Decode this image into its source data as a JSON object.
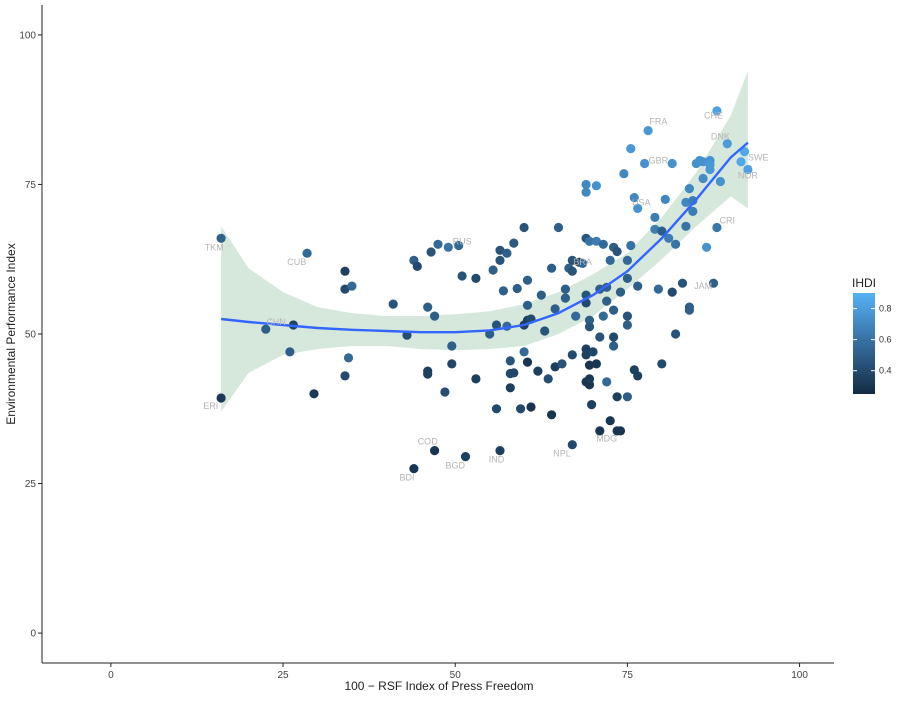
{
  "colors": {
    "ribbon": "#cfe3d6",
    "smooth_line": "#3366ff",
    "label": "#b5b5b5",
    "point_low": "#132b43",
    "point_high": "#56b1f7",
    "axis": "#222222"
  },
  "chart_data": {
    "type": "scatter",
    "xlabel": "100 − RSF Index of Press Freedom",
    "ylabel": "Environmental Performance Index",
    "xlim": [
      -10,
      105
    ],
    "ylim": [
      -5,
      105
    ],
    "x_ticks": [
      0,
      25,
      50,
      75,
      100
    ],
    "y_ticks": [
      0,
      25,
      50,
      75,
      100
    ],
    "grid": false,
    "legend": {
      "title": "IHDI",
      "placement": "right",
      "ticks": [
        0.4,
        0.6,
        0.8
      ],
      "range": [
        0.25,
        0.9
      ]
    },
    "smooth": {
      "x": [
        16,
        20,
        25,
        30,
        35,
        40,
        45,
        50,
        55,
        60,
        65,
        70,
        75,
        80,
        85,
        90,
        92.5
      ],
      "y": [
        52.5,
        52,
        51.5,
        51,
        50.7,
        50.5,
        50.3,
        50.3,
        50.6,
        51.5,
        53.5,
        56.5,
        60.5,
        66,
        72.5,
        79.5,
        82
      ],
      "lower": [
        37,
        43.5,
        46.5,
        47.5,
        48,
        48,
        47.5,
        47.3,
        47.5,
        48,
        50,
        53,
        57.5,
        62.5,
        68,
        73,
        71
      ],
      "upper": [
        68,
        61,
        57,
        54.5,
        53.5,
        53,
        53,
        53.3,
        53.8,
        55,
        57,
        60,
        63.5,
        69.5,
        77,
        86.5,
        94
      ]
    },
    "labels": [
      {
        "text": "TKM",
        "x": 15,
        "y": 64
      },
      {
        "text": "CUB",
        "x": 27,
        "y": 61.5
      },
      {
        "text": "RUS",
        "x": 51,
        "y": 65
      },
      {
        "text": "CHN",
        "x": 24,
        "y": 51.5
      },
      {
        "text": "ERI",
        "x": 14.5,
        "y": 37.5
      },
      {
        "text": "COD",
        "x": 46,
        "y": 31.5
      },
      {
        "text": "BDI",
        "x": 43,
        "y": 25.5
      },
      {
        "text": "BGD",
        "x": 50,
        "y": 27.5
      },
      {
        "text": "IND",
        "x": 56,
        "y": 28.5
      },
      {
        "text": "NPL",
        "x": 65.5,
        "y": 29.5
      },
      {
        "text": "MDG",
        "x": 72,
        "y": 32
      },
      {
        "text": "BRA",
        "x": 68.5,
        "y": 61.5
      },
      {
        "text": "FRA",
        "x": 79.5,
        "y": 85
      },
      {
        "text": "GBR",
        "x": 79.5,
        "y": 78.5
      },
      {
        "text": "USA",
        "x": 77,
        "y": 71.5
      },
      {
        "text": "CHE",
        "x": 87.5,
        "y": 86
      },
      {
        "text": "DNK",
        "x": 88.5,
        "y": 82.5
      },
      {
        "text": "SWE",
        "x": 94,
        "y": 79
      },
      {
        "text": "NOR",
        "x": 92.5,
        "y": 76
      },
      {
        "text": "CRI",
        "x": 89.5,
        "y": 68.5
      },
      {
        "text": "JAM",
        "x": 86,
        "y": 57.5
      }
    ],
    "points": [
      [
        16,
        66,
        0.52
      ],
      [
        16,
        39.3,
        0.32
      ],
      [
        22.5,
        50.8,
        0.5
      ],
      [
        26.5,
        51.5,
        0.37
      ],
      [
        26,
        47,
        0.5
      ],
      [
        28.5,
        63.5,
        0.55
      ],
      [
        29.5,
        40,
        0.32
      ],
      [
        34,
        60.5,
        0.35
      ],
      [
        34,
        57.5,
        0.4
      ],
      [
        35,
        58,
        0.55
      ],
      [
        34,
        43,
        0.4
      ],
      [
        34.5,
        46,
        0.55
      ],
      [
        41,
        55,
        0.45
      ],
      [
        43,
        49.8,
        0.42
      ],
      [
        44,
        62.3,
        0.5
      ],
      [
        44.5,
        61.3,
        0.4
      ],
      [
        44,
        27.5,
        0.3
      ],
      [
        46,
        54.5,
        0.5
      ],
      [
        46,
        43.8,
        0.35
      ],
      [
        46,
        43.3,
        0.35
      ],
      [
        46.5,
        63.7,
        0.45
      ],
      [
        47,
        53,
        0.5
      ],
      [
        47.5,
        65,
        0.55
      ],
      [
        47,
        30.5,
        0.3
      ],
      [
        49,
        64.5,
        0.6
      ],
      [
        48.5,
        40.3,
        0.42
      ],
      [
        49.5,
        45,
        0.38
      ],
      [
        49.5,
        48,
        0.5
      ],
      [
        50.5,
        64.8,
        0.55
      ],
      [
        51,
        59.7,
        0.45
      ],
      [
        51.5,
        29.5,
        0.35
      ],
      [
        53,
        59.3,
        0.4
      ],
      [
        53,
        42.5,
        0.35
      ],
      [
        55,
        50,
        0.5
      ],
      [
        55.5,
        60.7,
        0.5
      ],
      [
        56,
        51.5,
        0.45
      ],
      [
        56,
        37.5,
        0.4
      ],
      [
        56.5,
        62.3,
        0.45
      ],
      [
        56.5,
        30.5,
        0.35
      ],
      [
        56.5,
        64,
        0.45
      ],
      [
        57,
        57.2,
        0.5
      ],
      [
        57.5,
        63.5,
        0.5
      ],
      [
        57.5,
        51.3,
        0.55
      ],
      [
        58,
        43.4,
        0.4
      ],
      [
        58,
        45.5,
        0.45
      ],
      [
        58,
        41,
        0.35
      ],
      [
        58.5,
        43.5,
        0.38
      ],
      [
        58.5,
        65.2,
        0.48
      ],
      [
        59,
        57.6,
        0.5
      ],
      [
        59.5,
        37.5,
        0.4
      ],
      [
        60,
        51.5,
        0.35
      ],
      [
        60,
        47,
        0.55
      ],
      [
        60,
        67.8,
        0.45
      ],
      [
        60.5,
        54.8,
        0.5
      ],
      [
        60.5,
        59,
        0.5
      ],
      [
        60.5,
        52.3,
        0.35
      ],
      [
        60.5,
        45.3,
        0.3
      ],
      [
        61,
        37.8,
        0.3
      ],
      [
        61,
        52.5,
        0.4
      ],
      [
        62,
        43.8,
        0.35
      ],
      [
        62.5,
        56.5,
        0.5
      ],
      [
        63,
        50.5,
        0.45
      ],
      [
        63.5,
        42.5,
        0.42
      ],
      [
        64,
        61,
        0.5
      ],
      [
        64,
        36.5,
        0.3
      ],
      [
        64.5,
        44.5,
        0.35
      ],
      [
        64.5,
        54.2,
        0.5
      ],
      [
        65,
        67.8,
        0.5
      ],
      [
        65.5,
        45,
        0.45
      ],
      [
        66,
        56,
        0.5
      ],
      [
        66,
        57.5,
        0.5
      ],
      [
        66.5,
        61,
        0.5
      ],
      [
        67,
        60.5,
        0.45
      ],
      [
        67,
        62.3,
        0.45
      ],
      [
        67,
        46.5,
        0.4
      ],
      [
        67,
        31.5,
        0.4
      ],
      [
        67.5,
        53,
        0.55
      ],
      [
        68,
        62,
        0.4
      ],
      [
        68.5,
        61.8,
        0.55
      ],
      [
        69,
        75,
        0.7
      ],
      [
        69,
        73.7,
        0.7
      ],
      [
        69,
        66,
        0.45
      ],
      [
        69,
        56.5,
        0.45
      ],
      [
        69,
        55.2,
        0.4
      ],
      [
        69,
        47.5,
        0.35
      ],
      [
        69,
        46.5,
        0.35
      ],
      [
        69,
        42,
        0.3
      ],
      [
        69.5,
        65.5,
        0.6
      ],
      [
        69.5,
        52.3,
        0.5
      ],
      [
        69.5,
        51.2,
        0.45
      ],
      [
        69.5,
        41.5,
        0.3
      ],
      [
        69.5,
        42.5,
        0.32
      ],
      [
        69.5,
        44.8,
        0.3
      ],
      [
        69.8,
        38.2,
        0.35
      ],
      [
        70,
        47,
        0.38
      ],
      [
        70.5,
        74.8,
        0.75
      ],
      [
        70.5,
        65.5,
        0.65
      ],
      [
        70.5,
        45,
        0.3
      ],
      [
        71,
        49.5,
        0.45
      ],
      [
        71,
        57.5,
        0.5
      ],
      [
        71,
        33.8,
        0.3
      ],
      [
        71.5,
        65,
        0.55
      ],
      [
        71.5,
        53,
        0.55
      ],
      [
        72,
        57.8,
        0.5
      ],
      [
        72,
        55.5,
        0.5
      ],
      [
        72,
        42,
        0.55
      ],
      [
        72.5,
        62.3,
        0.55
      ],
      [
        72.5,
        35.5,
        0.3
      ],
      [
        73,
        64.5,
        0.5
      ],
      [
        73,
        54,
        0.5
      ],
      [
        73,
        48,
        0.5
      ],
      [
        73,
        49.5,
        0.4
      ],
      [
        73.5,
        63.8,
        0.45
      ],
      [
        73.5,
        39.5,
        0.35
      ],
      [
        73.5,
        33.8,
        0.3
      ],
      [
        74,
        33.8,
        0.3
      ],
      [
        74,
        57,
        0.5
      ],
      [
        74.5,
        76.8,
        0.7
      ],
      [
        75,
        62.3,
        0.55
      ],
      [
        75,
        59.3,
        0.5
      ],
      [
        75,
        53,
        0.45
      ],
      [
        75,
        51.5,
        0.5
      ],
      [
        75,
        39.5,
        0.5
      ],
      [
        75.5,
        81,
        0.78
      ],
      [
        75.5,
        64.8,
        0.6
      ],
      [
        76,
        72.8,
        0.7
      ],
      [
        76,
        44,
        0.35
      ],
      [
        76.5,
        71,
        0.75
      ],
      [
        76.5,
        43,
        0.35
      ],
      [
        76.5,
        58,
        0.5
      ],
      [
        77.5,
        78.5,
        0.75
      ],
      [
        78,
        84,
        0.78
      ],
      [
        79,
        69.5,
        0.65
      ],
      [
        79,
        67.5,
        0.65
      ],
      [
        79.5,
        57.5,
        0.55
      ],
      [
        80,
        67.2,
        0.5
      ],
      [
        80,
        45,
        0.4
      ],
      [
        80.5,
        72.5,
        0.7
      ],
      [
        81,
        66,
        0.65
      ],
      [
        81.5,
        78.5,
        0.75
      ],
      [
        81.5,
        57,
        0.4
      ],
      [
        82,
        50,
        0.45
      ],
      [
        82,
        65,
        0.6
      ],
      [
        83,
        58.5,
        0.45
      ],
      [
        83.5,
        68,
        0.6
      ],
      [
        83.5,
        72,
        0.7
      ],
      [
        84,
        54.5,
        0.5
      ],
      [
        84,
        54,
        0.5
      ],
      [
        84,
        74.3,
        0.7
      ],
      [
        84.5,
        72.3,
        0.65
      ],
      [
        84.5,
        70.5,
        0.65
      ],
      [
        85,
        78.5,
        0.75
      ],
      [
        85.5,
        79,
        0.75
      ],
      [
        86,
        78.8,
        0.75
      ],
      [
        86,
        76,
        0.72
      ],
      [
        86.5,
        64.5,
        0.75
      ],
      [
        87,
        79,
        0.75
      ],
      [
        87,
        78.3,
        0.78
      ],
      [
        87,
        77.5,
        0.78
      ],
      [
        87.5,
        58.5,
        0.5
      ],
      [
        88,
        87.3,
        0.82
      ],
      [
        88,
        67.8,
        0.62
      ],
      [
        88.5,
        75.5,
        0.75
      ],
      [
        89.5,
        81.8,
        0.8
      ],
      [
        91.5,
        78.8,
        0.85
      ],
      [
        92,
        80.5,
        0.85
      ],
      [
        92.5,
        77.5,
        0.82
      ]
    ]
  }
}
